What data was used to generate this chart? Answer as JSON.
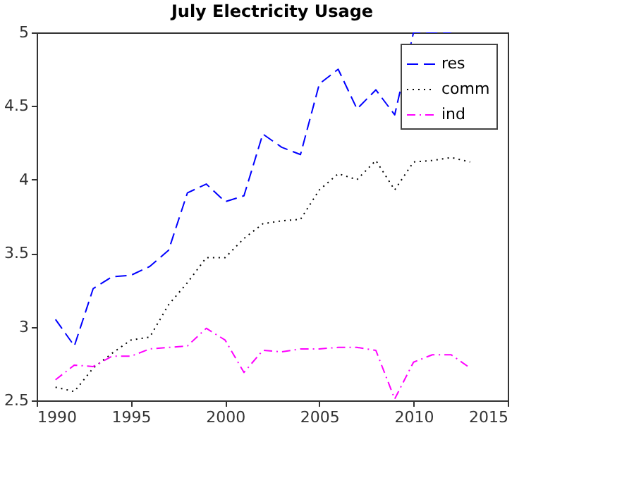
{
  "chart_data": {
    "type": "line",
    "title": "July Electricity Usage",
    "x": [
      1991,
      1992,
      1993,
      1994,
      1995,
      1996,
      1997,
      1998,
      1999,
      2000,
      2001,
      2002,
      2003,
      2004,
      2005,
      2006,
      2007,
      2008,
      2009,
      2010,
      2011,
      2012,
      2013
    ],
    "series": [
      {
        "name": "res",
        "color": "#0000ff",
        "line_style": "dashed",
        "values": [
          3.05,
          2.87,
          3.26,
          3.34,
          3.35,
          3.41,
          3.52,
          3.91,
          3.97,
          3.85,
          3.89,
          4.31,
          4.22,
          4.17,
          4.65,
          4.75,
          4.48,
          4.61,
          4.44,
          5.0,
          5.0,
          5.0,
          null
        ]
      },
      {
        "name": "comm",
        "color": "#000000",
        "line_style": "dotted",
        "values": [
          2.59,
          2.56,
          2.72,
          2.82,
          2.91,
          2.93,
          3.15,
          3.3,
          3.47,
          3.47,
          3.6,
          3.7,
          3.72,
          3.73,
          3.93,
          4.04,
          4.0,
          4.13,
          3.93,
          4.12,
          4.13,
          4.15,
          4.12
        ]
      },
      {
        "name": "ind",
        "color": "#ff00ff",
        "line_style": "dashdot",
        "values": [
          2.64,
          2.74,
          2.73,
          2.8,
          2.8,
          2.85,
          2.86,
          2.87,
          2.99,
          2.91,
          2.69,
          2.84,
          2.83,
          2.85,
          2.85,
          2.86,
          2.86,
          2.84,
          2.51,
          2.76,
          2.81,
          2.81,
          2.72
        ]
      }
    ],
    "xlim": [
      1990,
      2015
    ],
    "xticks": [
      1990,
      1995,
      2000,
      2005,
      2010,
      2015
    ],
    "ylim": [
      2.5,
      5
    ],
    "yticks": [
      2.5,
      3,
      3.5,
      4,
      4.5,
      5
    ],
    "grid": false,
    "legend": "top right",
    "marker": "none"
  }
}
